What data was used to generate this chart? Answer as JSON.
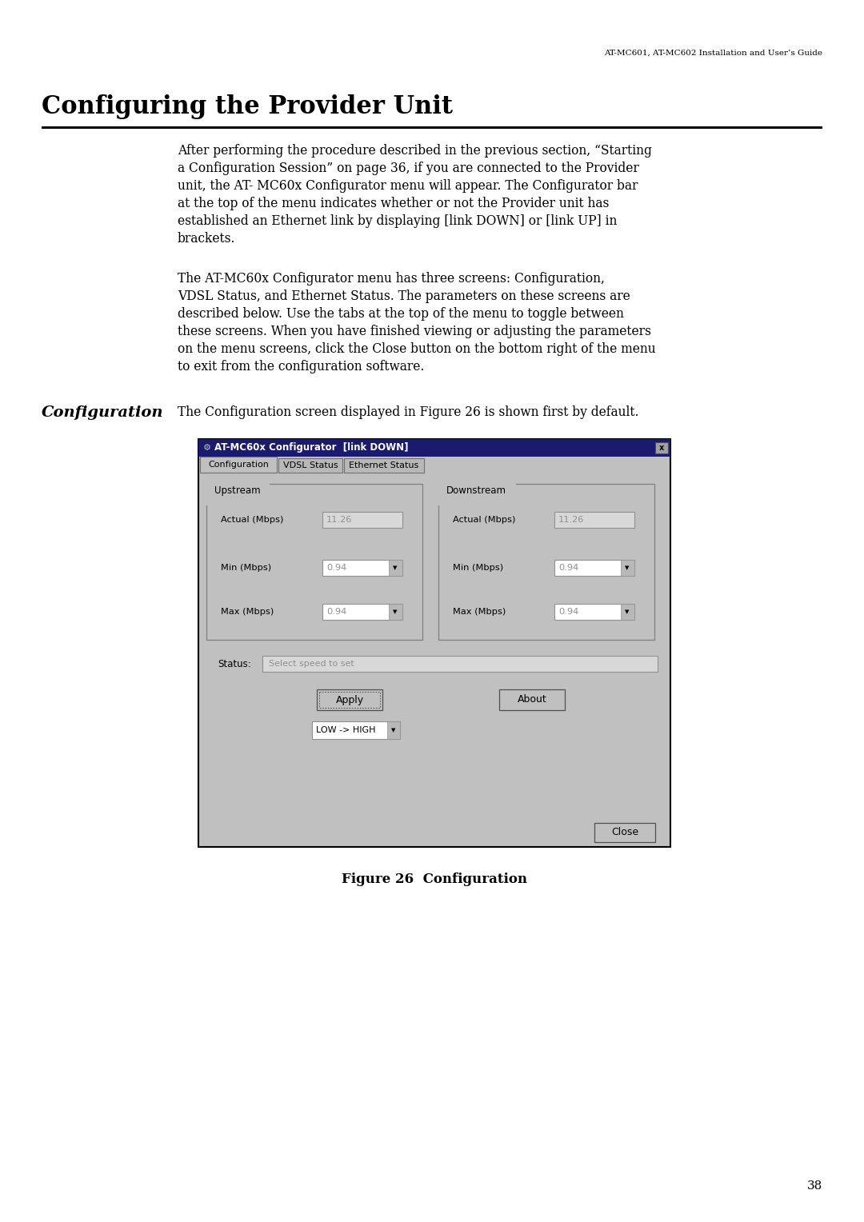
{
  "page_header": "AT-MC601, AT-MC602 Installation and User’s Guide",
  "chapter_title": "Configuring the Provider Unit",
  "section_label": "Configuration",
  "para1_lines": [
    "After performing the procedure described in the previous section, “Starting",
    "a Configuration Session” on page 36, if you are connected to the Provider",
    "unit, the AT- MC60x Configurator menu will appear. The Configurator bar",
    "at the top of the menu indicates whether or not the Provider unit has",
    "established an Ethernet link by displaying [link DOWN] or [link UP] in",
    "brackets."
  ],
  "para2_lines": [
    "The AT-MC60x Configurator menu has three screens: Configuration,",
    "VDSL Status, and Ethernet Status. The parameters on these screens are",
    "described below. Use the tabs at the top of the menu to toggle between",
    "these screens. When you have finished viewing or adjusting the parameters",
    "on the menu screens, click the Close button on the bottom right of the menu",
    "to exit from the configuration software."
  ],
  "config_intro": "The Configuration screen displayed in Figure 26 is shown first by default.",
  "figure_caption": "Figure 26  Configuration",
  "page_number": "38",
  "window_title": "AT-MC60x Configurator  [link DOWN]",
  "tab1": "Configuration",
  "tab2": "VDSL Status",
  "tab3": "Ethernet Status",
  "upstream_label": "Upstream",
  "downstream_label": "Downstream",
  "actual_label": "Actual (Mbps)",
  "actual_value": "11.26",
  "min_label": "Min (Mbps)",
  "min_value": "0.94",
  "max_label": "Max (Mbps)",
  "max_value": "0.94",
  "status_label": "Status:",
  "status_value": "Select speed to set",
  "apply_btn": "Apply",
  "about_btn": "About",
  "dropdown_value": "LOW -> HIGH",
  "close_btn": "Close",
  "bg_color": "#ffffff",
  "text_color": "#000000",
  "dialog_bg": "#c0c0c0",
  "title_bg": "#2a2a7a",
  "input_bg": "#d8d8d8",
  "white": "#ffffff",
  "gray_mid": "#b0b0b0"
}
